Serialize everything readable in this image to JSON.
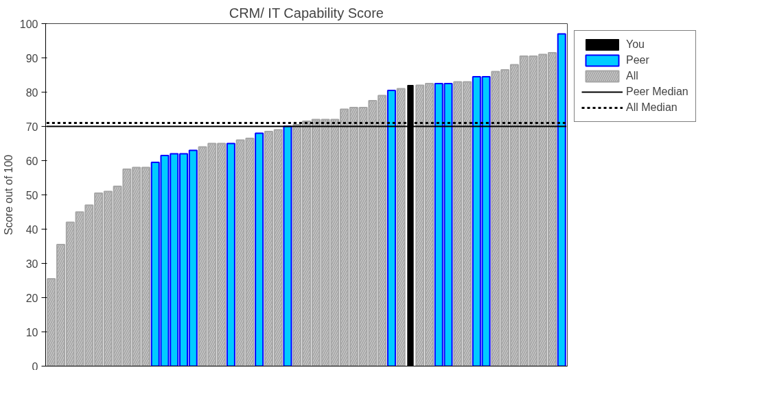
{
  "chart_data": {
    "type": "bar",
    "title": "CRM/ IT Capability Score",
    "ylabel": "Score out of 100",
    "categories": [
      null,
      null,
      null,
      null,
      null,
      null,
      null,
      null,
      null,
      null,
      null,
      null,
      null,
      null,
      null,
      null,
      null,
      null,
      null,
      null,
      null,
      null,
      null,
      null,
      null,
      null,
      null,
      null,
      null,
      null,
      null,
      null,
      null,
      null,
      null,
      null,
      null,
      null,
      null,
      null,
      null,
      null,
      null,
      null,
      null,
      null,
      null,
      null,
      null,
      null,
      null,
      null,
      null,
      null,
      null
    ],
    "series": [
      {
        "name": "You",
        "color": "#000000",
        "values": [
          null,
          null,
          null,
          null,
          null,
          null,
          null,
          null,
          null,
          null,
          null,
          null,
          null,
          null,
          null,
          null,
          null,
          null,
          null,
          null,
          null,
          null,
          null,
          null,
          null,
          null,
          null,
          null,
          null,
          null,
          null,
          null,
          null,
          null,
          null,
          null,
          null,
          null,
          82,
          null,
          null,
          null,
          null,
          null,
          null,
          null,
          null,
          null,
          null,
          null,
          null,
          null,
          null,
          null,
          null
        ]
      },
      {
        "name": "Peer",
        "color": "#00ccff",
        "values": [
          null,
          null,
          null,
          null,
          null,
          null,
          null,
          null,
          null,
          null,
          null,
          59.5,
          61.5,
          62,
          62,
          63,
          null,
          null,
          null,
          65,
          null,
          null,
          68,
          null,
          null,
          70,
          null,
          null,
          null,
          null,
          null,
          null,
          null,
          null,
          null,
          null,
          80.5,
          null,
          null,
          null,
          null,
          82.5,
          82.5,
          null,
          null,
          84.5,
          84.5,
          null,
          null,
          null,
          null,
          null,
          null,
          null,
          97
        ]
      },
      {
        "name": "All",
        "color": "#a6a6a6",
        "values": [
          25.5,
          35.5,
          42,
          45,
          47,
          50.5,
          51,
          52.5,
          57.5,
          58,
          58,
          null,
          null,
          null,
          null,
          null,
          64,
          65,
          65,
          null,
          66,
          66.5,
          null,
          68.5,
          69,
          null,
          70.5,
          71.5,
          72,
          72,
          72,
          75,
          75.5,
          75.5,
          77.5,
          79,
          null,
          81,
          null,
          82,
          82.5,
          null,
          null,
          83,
          83,
          null,
          null,
          86,
          86.5,
          88,
          90.5,
          90.5,
          91,
          91.5,
          null
        ]
      }
    ],
    "ylim": [
      0,
      100
    ],
    "yticks": [
      0,
      10,
      20,
      30,
      40,
      50,
      60,
      70,
      80,
      90,
      100
    ],
    "ref_lines": [
      {
        "axis": "y",
        "value": 70,
        "label": "Peer Median",
        "color": "#000000",
        "line_style": "solid"
      },
      {
        "axis": "y",
        "value": 71,
        "label": "All Median",
        "color": "#000000",
        "line_style": "dotted"
      }
    ],
    "legend": "right",
    "tick_labels": "y"
  }
}
